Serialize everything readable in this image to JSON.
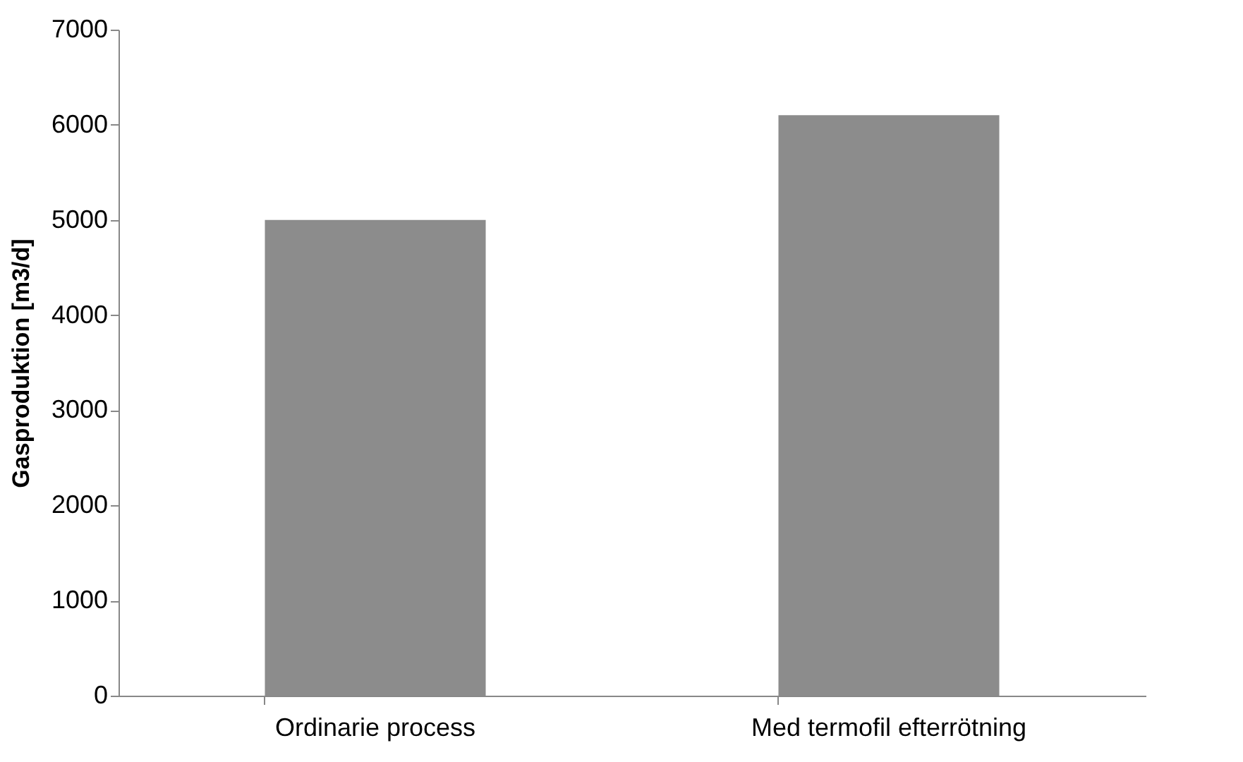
{
  "chart_data": {
    "type": "bar",
    "ylabel": "Gasproduktion [m3/d]",
    "categories": [
      "Ordinarie process",
      "Med termofil efterrötning"
    ],
    "values": [
      5000,
      6100
    ],
    "color": "#8c8c8c",
    "ylim": [
      0,
      7000
    ],
    "yticks": [
      0,
      1000,
      2000,
      3000,
      4000,
      5000,
      6000,
      7000
    ],
    "grid": false
  }
}
